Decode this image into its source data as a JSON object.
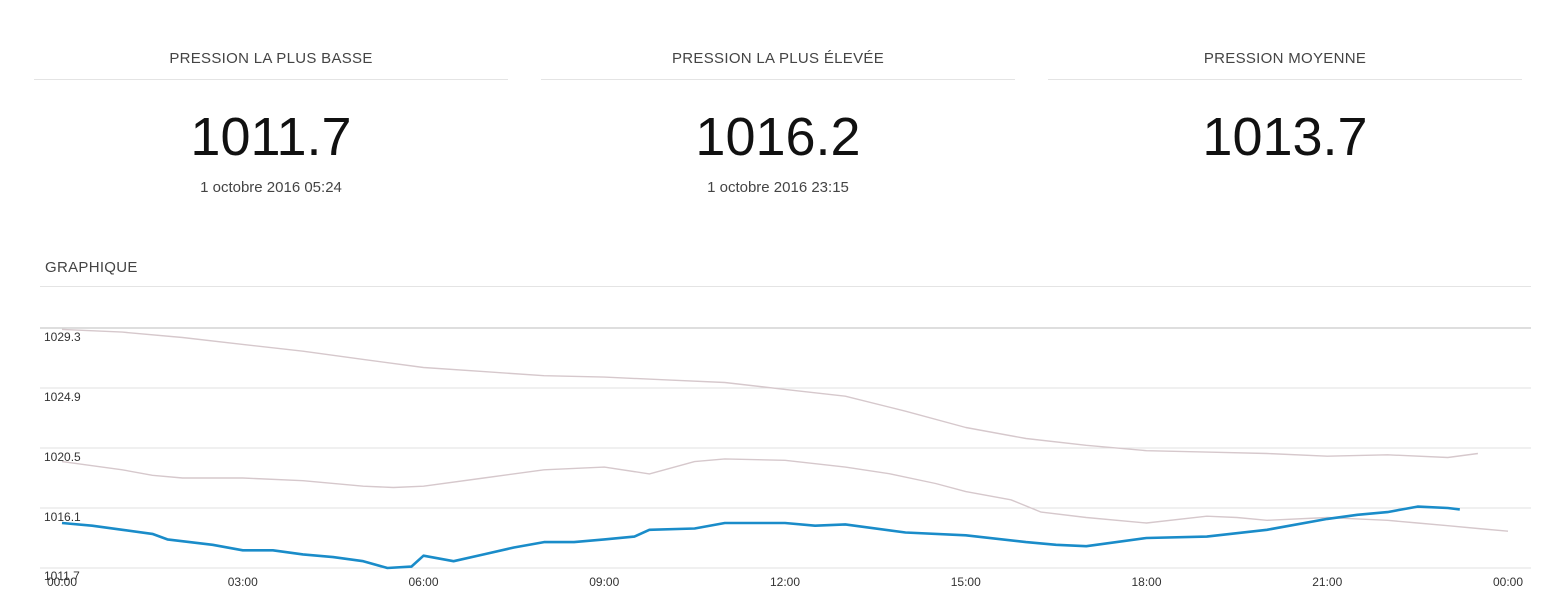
{
  "stats": {
    "low": {
      "title": "PRESSION LA PLUS BASSE",
      "value": "1011.7",
      "date": "1 octobre 2016 05:24"
    },
    "high": {
      "title": "PRESSION LA PLUS ÉLEVÉE",
      "value": "1016.2",
      "date": "1 octobre 2016 23:15"
    },
    "avg": {
      "title": "PRESSION MOYENNE",
      "value": "1013.7"
    }
  },
  "graph": {
    "title": "GRAPHIQUE"
  },
  "colors": {
    "main": "#1a8cc9",
    "comparison": "#d6c8cc",
    "grid": "#e2e2e2"
  },
  "chart_data": {
    "type": "line",
    "xlim": [
      0,
      24
    ],
    "ylim": [
      1011.7,
      1029.3
    ],
    "yticks": [
      "1029.3",
      "1024.9",
      "1020.5",
      "1016.1",
      "1011.7"
    ],
    "xticks": [
      "00:00",
      "03:00",
      "06:00",
      "09:00",
      "12:00",
      "15:00",
      "18:00",
      "21:00",
      "00:00"
    ],
    "series": [
      {
        "values": [
          [
            0.0,
            1015.0
          ],
          [
            0.5,
            1014.8
          ],
          [
            1.0,
            1014.5
          ],
          [
            1.5,
            1014.2
          ],
          [
            1.75,
            1013.8
          ],
          [
            2.5,
            1013.4
          ],
          [
            3.0,
            1013.0
          ],
          [
            3.5,
            1013.0
          ],
          [
            4.0,
            1012.7
          ],
          [
            4.5,
            1012.5
          ],
          [
            5.0,
            1012.2
          ],
          [
            5.4,
            1011.7
          ],
          [
            5.8,
            1011.8
          ],
          [
            6.0,
            1012.6
          ],
          [
            6.5,
            1012.2
          ],
          [
            7.0,
            1012.7
          ],
          [
            7.5,
            1013.2
          ],
          [
            8.0,
            1013.6
          ],
          [
            8.5,
            1013.6
          ],
          [
            9.0,
            1013.8
          ],
          [
            9.5,
            1014.0
          ],
          [
            9.75,
            1014.5
          ],
          [
            10.5,
            1014.6
          ],
          [
            11.0,
            1015.0
          ],
          [
            12.0,
            1015.0
          ],
          [
            12.5,
            1014.8
          ],
          [
            13.0,
            1014.9
          ],
          [
            14.0,
            1014.3
          ],
          [
            15.0,
            1014.1
          ],
          [
            16.0,
            1013.6
          ],
          [
            16.5,
            1013.4
          ],
          [
            17.0,
            1013.3
          ],
          [
            18.0,
            1013.9
          ],
          [
            19.0,
            1014.0
          ],
          [
            20.0,
            1014.5
          ],
          [
            21.0,
            1015.3
          ],
          [
            21.5,
            1015.6
          ],
          [
            22.0,
            1015.8
          ],
          [
            22.5,
            1016.2
          ],
          [
            23.0,
            1016.1
          ],
          [
            23.2,
            1016.0
          ]
        ]
      },
      {
        "values": [
          [
            0.0,
            1019.5
          ],
          [
            1.0,
            1018.9
          ],
          [
            1.5,
            1018.5
          ],
          [
            2.0,
            1018.3
          ],
          [
            3.0,
            1018.3
          ],
          [
            4.0,
            1018.1
          ],
          [
            5.0,
            1017.7
          ],
          [
            5.5,
            1017.6
          ],
          [
            6.0,
            1017.7
          ],
          [
            7.0,
            1018.3
          ],
          [
            8.0,
            1018.9
          ],
          [
            9.0,
            1019.1
          ],
          [
            9.75,
            1018.6
          ],
          [
            10.5,
            1019.5
          ],
          [
            11.0,
            1019.7
          ],
          [
            12.0,
            1019.6
          ],
          [
            13.0,
            1019.1
          ],
          [
            13.75,
            1018.6
          ],
          [
            14.5,
            1017.9
          ],
          [
            15.0,
            1017.3
          ],
          [
            15.75,
            1016.7
          ],
          [
            16.25,
            1015.8
          ],
          [
            17.0,
            1015.4
          ],
          [
            18.0,
            1015.0
          ],
          [
            19.0,
            1015.5
          ],
          [
            19.5,
            1015.4
          ],
          [
            20.0,
            1015.2
          ],
          [
            21.0,
            1015.4
          ],
          [
            21.5,
            1015.3
          ],
          [
            22.0,
            1015.2
          ],
          [
            22.5,
            1015.0
          ],
          [
            23.0,
            1014.8
          ],
          [
            23.5,
            1014.6
          ],
          [
            24.0,
            1014.4
          ]
        ]
      },
      {
        "values": [
          [
            0.0,
            1029.2
          ],
          [
            1.0,
            1029.0
          ],
          [
            2.0,
            1028.6
          ],
          [
            3.0,
            1028.1
          ],
          [
            4.0,
            1027.6
          ],
          [
            5.0,
            1027.0
          ],
          [
            6.0,
            1026.4
          ],
          [
            7.0,
            1026.1
          ],
          [
            8.0,
            1025.8
          ],
          [
            9.0,
            1025.7
          ],
          [
            10.0,
            1025.5
          ],
          [
            11.0,
            1025.3
          ],
          [
            12.0,
            1024.8
          ],
          [
            13.0,
            1024.3
          ],
          [
            14.0,
            1023.2
          ],
          [
            15.0,
            1022.0
          ],
          [
            16.0,
            1021.2
          ],
          [
            17.0,
            1020.7
          ],
          [
            18.0,
            1020.3
          ],
          [
            19.0,
            1020.2
          ],
          [
            20.0,
            1020.1
          ],
          [
            21.0,
            1019.9
          ],
          [
            22.0,
            1020.0
          ],
          [
            23.0,
            1019.8
          ],
          [
            23.5,
            1020.1
          ]
        ]
      }
    ]
  }
}
